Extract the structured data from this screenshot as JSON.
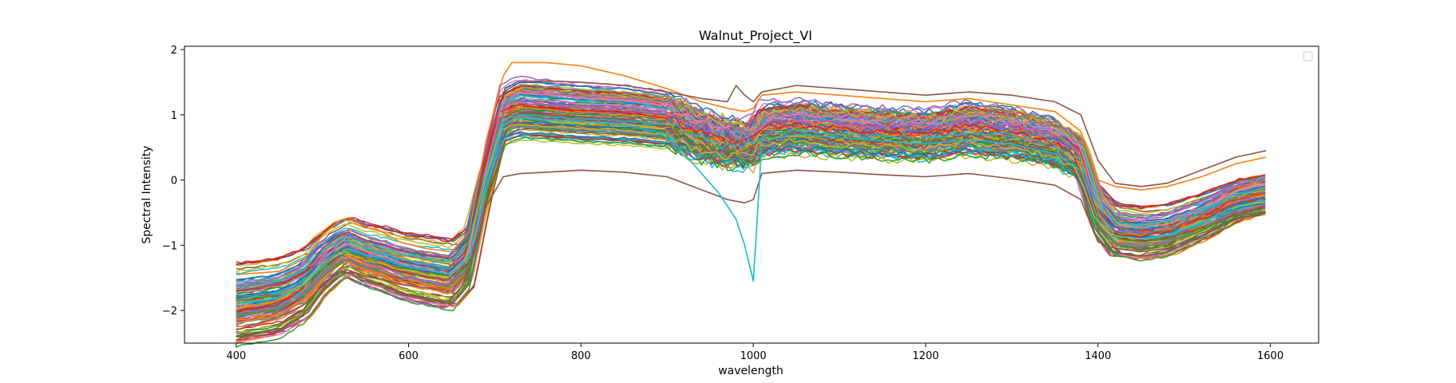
{
  "chart_data": {
    "type": "line",
    "title": "Walnut_Project_VI",
    "xlabel": "wavelength",
    "ylabel": "Spectral Intensity",
    "xlim": [
      340,
      1656
    ],
    "ylim": [
      -2.5,
      2.05
    ],
    "xticks": [
      400,
      600,
      800,
      1000,
      1200,
      1400,
      1600
    ],
    "yticks": [
      -2,
      -1,
      0,
      1,
      2
    ],
    "grid": false,
    "legend": "top-right, empty",
    "colors": [
      "#1f77b4",
      "#ff7f0e",
      "#2ca02c",
      "#d62728",
      "#9467bd",
      "#8c564b",
      "#e377c2",
      "#7f7f7f",
      "#bcbd22",
      "#17becf"
    ],
    "note_series_count": "many (approx. 140 overlapping spectra)",
    "base_profile": {
      "x": [
        400,
        450,
        480,
        500,
        520,
        530,
        550,
        570,
        590,
        620,
        650,
        670,
        690,
        710,
        730,
        760,
        800,
        850,
        900,
        940,
        970,
        990,
        1000,
        1010,
        1050,
        1100,
        1150,
        1200,
        1250,
        1300,
        1350,
        1380,
        1400,
        1420,
        1450,
        1480,
        1520,
        1560,
        1595
      ],
      "y": [
        -1.85,
        -1.75,
        -1.55,
        -1.25,
        -1.05,
        -1.0,
        -1.12,
        -1.18,
        -1.28,
        -1.35,
        -1.42,
        -1.15,
        0.0,
        0.95,
        1.05,
        1.02,
        0.98,
        0.95,
        0.88,
        0.65,
        0.55,
        0.5,
        0.55,
        0.72,
        0.78,
        0.72,
        0.68,
        0.65,
        0.75,
        0.68,
        0.55,
        0.3,
        -0.45,
        -0.75,
        -0.8,
        -0.75,
        -0.55,
        -0.3,
        -0.2
      ]
    },
    "series": [
      {
        "color": "#ff7f0e",
        "x": [
          400,
          450,
          480,
          500,
          520,
          530,
          550,
          570,
          590,
          620,
          650,
          670,
          690,
          710,
          720,
          760,
          800,
          850,
          900,
          940,
          970,
          990,
          1000,
          1010,
          1050,
          1100,
          1150,
          1200,
          1250,
          1300,
          1350,
          1380,
          1400,
          1420,
          1450,
          1480,
          1520,
          1560,
          1595
        ],
        "y": [
          -1.45,
          -1.4,
          -1.2,
          -0.85,
          -0.62,
          -0.58,
          -0.72,
          -0.8,
          -0.95,
          -1.05,
          -1.1,
          -0.8,
          0.6,
          1.6,
          1.8,
          1.8,
          1.75,
          1.6,
          1.4,
          1.2,
          1.1,
          1.05,
          1.1,
          1.3,
          1.35,
          1.3,
          1.25,
          1.2,
          1.25,
          1.15,
          1.05,
          0.75,
          0.0,
          -0.1,
          -0.15,
          -0.1,
          0.05,
          0.25,
          0.35
        ]
      },
      {
        "color": "#8c564b",
        "x": [
          400,
          450,
          480,
          500,
          520,
          530,
          550,
          570,
          590,
          620,
          650,
          670,
          690,
          710,
          730,
          760,
          800,
          850,
          900,
          940,
          970,
          990,
          1000,
          1010,
          1050,
          1100,
          1150,
          1200,
          1250,
          1300,
          1350,
          1380,
          1400,
          1420,
          1450,
          1480,
          1520,
          1560,
          1595
        ],
        "y": [
          -2.3,
          -2.1,
          -1.9,
          -1.6,
          -1.4,
          -1.38,
          -1.48,
          -1.52,
          -1.6,
          -1.65,
          -1.7,
          -1.4,
          -0.4,
          0.05,
          0.1,
          0.12,
          0.15,
          0.12,
          0.05,
          -0.15,
          -0.3,
          -0.35,
          -0.3,
          0.1,
          0.15,
          0.12,
          0.08,
          0.05,
          0.1,
          0.02,
          -0.08,
          -0.3,
          -0.95,
          -1.05,
          -1.1,
          -1.05,
          -0.85,
          -0.6,
          -0.5
        ]
      },
      {
        "color": "#17becf",
        "x": [
          400,
          450,
          480,
          500,
          520,
          530,
          550,
          570,
          590,
          620,
          650,
          670,
          690,
          710,
          730,
          760,
          800,
          850,
          900,
          940,
          960,
          980,
          990,
          1000,
          1005,
          1010,
          1050,
          1100,
          1150,
          1200,
          1250,
          1300,
          1350,
          1380,
          1400,
          1420,
          1450,
          1480,
          1520,
          1560,
          1595
        ],
        "y": [
          -1.9,
          -1.8,
          -1.6,
          -1.3,
          -1.1,
          -1.05,
          -1.15,
          -1.2,
          -1.3,
          -1.38,
          -1.45,
          -1.2,
          -0.1,
          0.85,
          0.95,
          0.92,
          0.9,
          0.85,
          0.7,
          0.1,
          -0.2,
          -0.6,
          -1.0,
          -1.55,
          -0.5,
          0.6,
          0.7,
          0.65,
          0.6,
          0.55,
          0.62,
          0.55,
          0.4,
          0.15,
          -0.6,
          -0.85,
          -0.9,
          -0.85,
          -0.65,
          -0.4,
          -0.3
        ]
      },
      {
        "color": "#8c564b",
        "x": [
          400,
          450,
          480,
          500,
          520,
          530,
          550,
          570,
          590,
          620,
          650,
          670,
          690,
          710,
          730,
          760,
          800,
          850,
          900,
          940,
          970,
          980,
          990,
          1000,
          1010,
          1050,
          1100,
          1150,
          1200,
          1250,
          1300,
          1350,
          1380,
          1400,
          1420,
          1450,
          1480,
          1520,
          1560,
          1595
        ],
        "y": [
          -1.7,
          -1.6,
          -1.4,
          -1.05,
          -0.85,
          -0.8,
          -0.92,
          -0.98,
          -1.08,
          -1.15,
          -1.2,
          -0.9,
          0.4,
          1.35,
          1.5,
          1.52,
          1.5,
          1.45,
          1.35,
          1.25,
          1.2,
          1.45,
          1.3,
          1.2,
          1.35,
          1.45,
          1.4,
          1.35,
          1.3,
          1.35,
          1.3,
          1.2,
          1.0,
          0.3,
          -0.05,
          -0.1,
          -0.05,
          0.15,
          0.35,
          0.45
        ]
      }
    ]
  }
}
